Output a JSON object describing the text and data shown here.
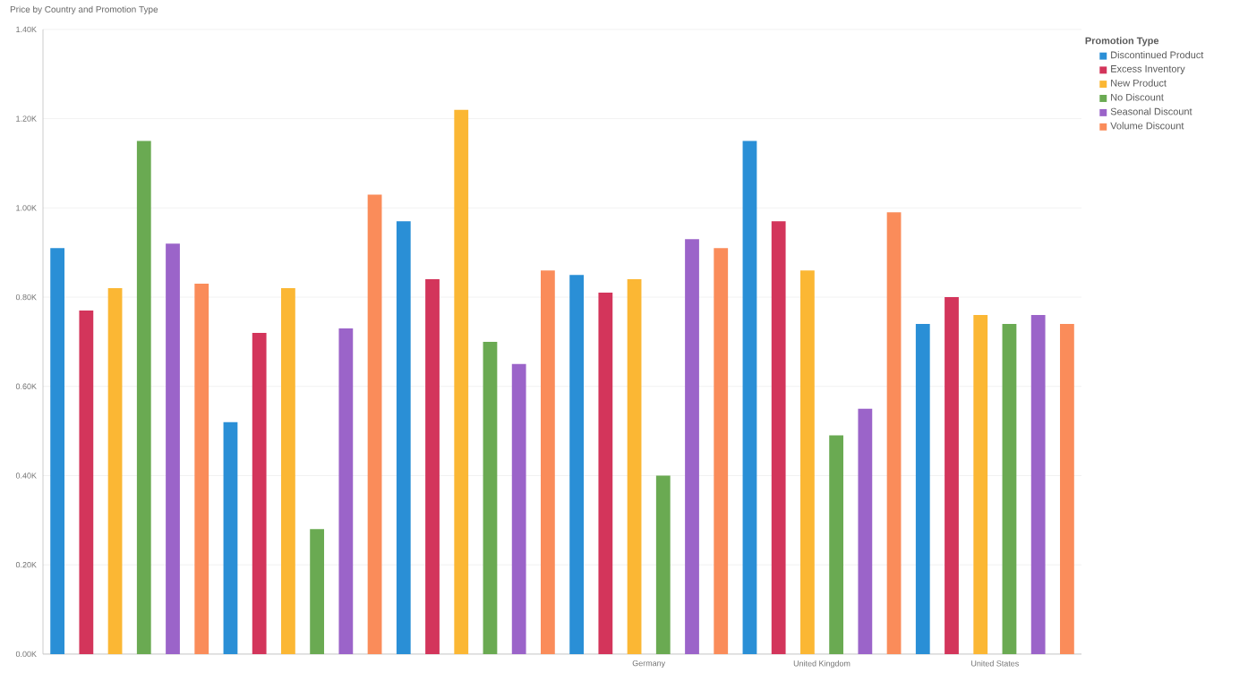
{
  "chart_data": {
    "type": "bar",
    "title": "Price by Country and Promotion Type",
    "legend_title": "Promotion Type",
    "categories": [
      null,
      null,
      null,
      "Germany",
      "United Kingdom",
      "United States"
    ],
    "series": [
      {
        "name": "Discontinued Product",
        "color": "#2a8fd6",
        "values": [
          0.91,
          0.52,
          0.97,
          0.85,
          1.15,
          0.74
        ]
      },
      {
        "name": "Excess Inventory",
        "color": "#d3355b",
        "values": [
          0.77,
          0.72,
          0.84,
          0.81,
          0.97,
          0.8
        ]
      },
      {
        "name": "New Product",
        "color": "#fbb734",
        "values": [
          0.82,
          0.82,
          1.22,
          0.84,
          0.86,
          0.76
        ]
      },
      {
        "name": "No Discount",
        "color": "#6aaa52",
        "values": [
          1.15,
          0.28,
          0.7,
          0.4,
          0.49,
          0.74
        ]
      },
      {
        "name": "Seasonal Discount",
        "color": "#9b64c9",
        "values": [
          0.92,
          0.73,
          0.65,
          0.93,
          0.55,
          0.76
        ]
      },
      {
        "name": "Volume Discount",
        "color": "#fa8c5a",
        "values": [
          0.83,
          1.03,
          0.86,
          0.91,
          0.99,
          0.74
        ]
      }
    ],
    "ylim": [
      0,
      1.4
    ],
    "yticks": [
      {
        "value": 0,
        "label": "0.00K"
      },
      {
        "value": 0.2,
        "label": "0.20K"
      },
      {
        "value": 0.4,
        "label": "0.40K"
      },
      {
        "value": 0.6,
        "label": "0.60K"
      },
      {
        "value": 0.8,
        "label": "0.80K"
      },
      {
        "value": 1.0,
        "label": "1.00K"
      },
      {
        "value": 1.2,
        "label": "1.20K"
      },
      {
        "value": 1.4,
        "label": "1.40K"
      }
    ],
    "grid": "y",
    "legend": "top right"
  }
}
